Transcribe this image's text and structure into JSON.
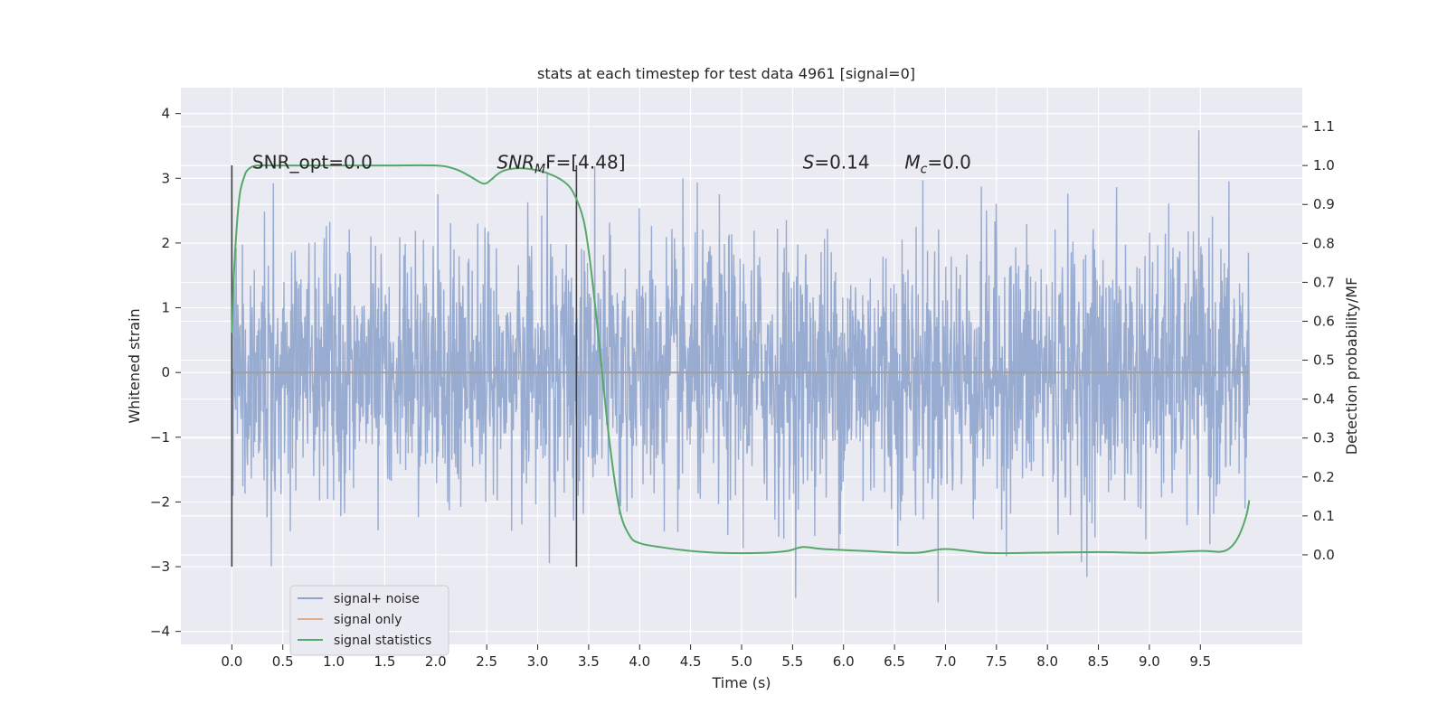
{
  "chart_data": {
    "type": "line",
    "title": "stats at each timestep for test data 4961 [signal=0]",
    "xlabel": "Time (s)",
    "ylabel": "Whitened strain",
    "y2label": "Detection probability/MF",
    "xlim": [
      -0.5,
      10.5
    ],
    "ylim": [
      -4.2,
      4.4
    ],
    "y2lim": [
      -0.23,
      1.2
    ],
    "xticks": [
      "0.0",
      "0.5",
      "1.0",
      "1.5",
      "2.0",
      "2.5",
      "3.0",
      "3.5",
      "4.0",
      "4.5",
      "5.0",
      "5.5",
      "6.0",
      "6.5",
      "7.0",
      "7.5",
      "8.0",
      "8.5",
      "9.0",
      "9.5"
    ],
    "yticks": [
      "−4",
      "−3",
      "−2",
      "−1",
      "0",
      "1",
      "2",
      "3",
      "4"
    ],
    "y2ticks": [
      "0.0",
      "0.1",
      "0.2",
      "0.3",
      "0.4",
      "0.5",
      "0.6",
      "0.7",
      "0.8",
      "0.9",
      "1.0",
      "1.1"
    ],
    "grid": true,
    "legend_position": "lower-left",
    "colors": {
      "background": "#eaeaf2",
      "grid": "#ffffff",
      "noise": "#8fa4cc",
      "signal_only": "#dd8452",
      "statistics": "#55a868",
      "vline": "#404040"
    },
    "series": [
      {
        "name": "signal+ noise",
        "x_range": [
          0.0,
          9.98
        ],
        "y_envelope": [
          -3.9,
          4.05
        ]
      },
      {
        "name": "signal only",
        "x": [
          0.0,
          9.98
        ],
        "y": [
          0.0,
          0.0
        ]
      },
      {
        "name": "signal statistics",
        "axis": "right",
        "x": [
          0.0,
          0.02,
          0.05,
          0.08,
          0.12,
          0.16,
          0.25,
          0.5,
          1.0,
          1.5,
          2.0,
          2.2,
          2.35,
          2.45,
          2.5,
          2.55,
          2.65,
          2.8,
          2.95,
          3.1,
          3.25,
          3.35,
          3.45,
          3.52,
          3.6,
          3.7,
          3.8,
          3.9,
          4.0,
          4.2,
          4.5,
          4.8,
          5.2,
          5.45,
          5.6,
          5.8,
          6.2,
          6.7,
          7.0,
          7.4,
          7.8,
          8.5,
          9.0,
          9.5,
          9.7,
          9.8,
          9.88,
          9.95,
          9.98
        ],
        "y": [
          0.57,
          0.72,
          0.85,
          0.93,
          0.97,
          0.99,
          1.0,
          1.0,
          1.0,
          1.0,
          1.0,
          0.99,
          0.97,
          0.955,
          0.955,
          0.965,
          0.985,
          0.993,
          0.99,
          0.98,
          0.96,
          0.93,
          0.86,
          0.74,
          0.55,
          0.3,
          0.12,
          0.05,
          0.03,
          0.02,
          0.01,
          0.005,
          0.005,
          0.01,
          0.02,
          0.015,
          0.01,
          0.005,
          0.015,
          0.005,
          0.005,
          0.007,
          0.005,
          0.01,
          0.008,
          0.02,
          0.05,
          0.1,
          0.14
        ]
      }
    ],
    "vlines": [
      0.0,
      3.38
    ],
    "vline_ylim": [
      -3.0,
      3.2
    ],
    "annotations": [
      {
        "id": "snr_opt",
        "text": "SNR_opt=0.0",
        "x": 0.2,
        "y": 3.15
      },
      {
        "id": "snr_mf",
        "prefix": "SNR",
        "sub": "M",
        "suffix": "F=[4.48]",
        "x": 2.6,
        "y": 3.15,
        "italic_prefix": true
      },
      {
        "id": "s",
        "prefix": "S",
        "suffix": "=0.14",
        "x": 5.6,
        "y": 3.15,
        "italic_prefix": true
      },
      {
        "id": "mc",
        "prefix": "M",
        "sub": "c",
        "suffix": "=0.0",
        "x": 6.6,
        "y": 3.15,
        "italic_prefix": true
      }
    ]
  }
}
